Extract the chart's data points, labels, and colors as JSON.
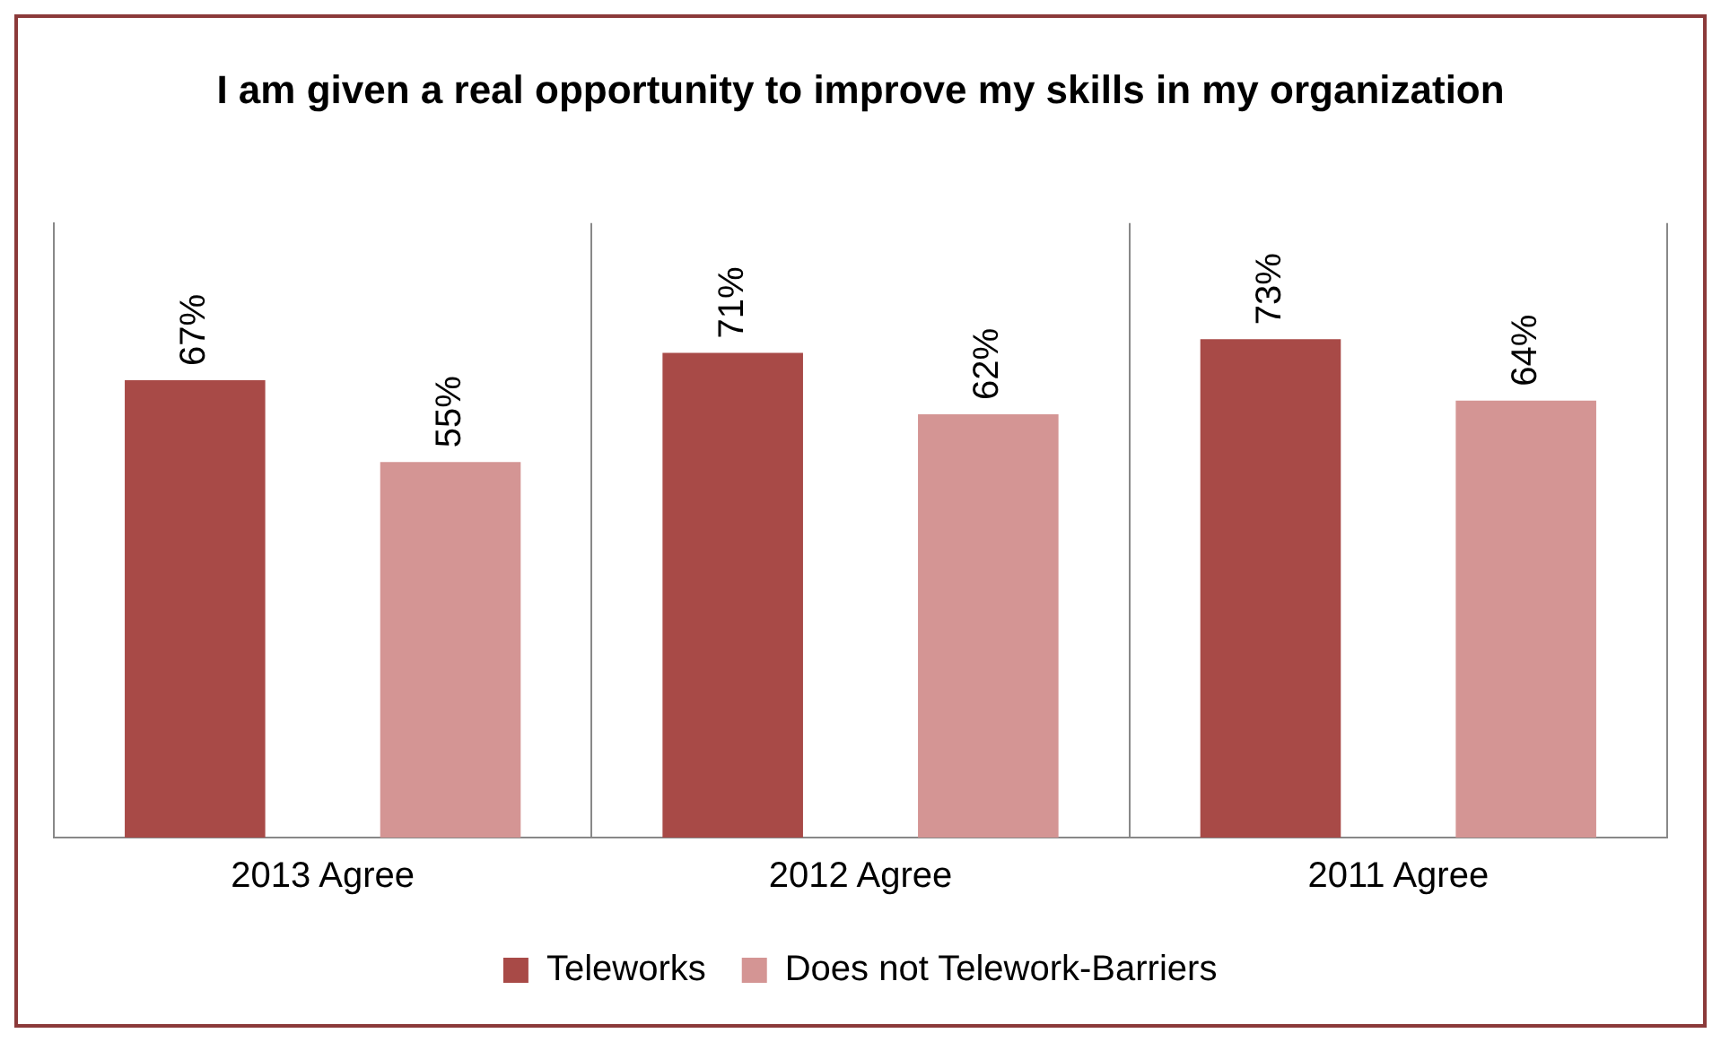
{
  "chart_data": {
    "type": "bar",
    "title": "I am given a real opportunity to improve my skills in my organization",
    "categories": [
      "2013 Agree",
      "2012 Agree",
      "2011 Agree"
    ],
    "series": [
      {
        "name": "Teleworks",
        "color": "#a84a47",
        "values": [
          67,
          71,
          73
        ],
        "value_labels": [
          "67%",
          "71%",
          "73%"
        ]
      },
      {
        "name": "Does not Telework-Barriers",
        "color": "#d49594",
        "values": [
          55,
          62,
          64
        ],
        "value_labels": [
          "55%",
          "62%",
          "64%"
        ]
      }
    ],
    "grid": "x",
    "legend": "bottom"
  }
}
